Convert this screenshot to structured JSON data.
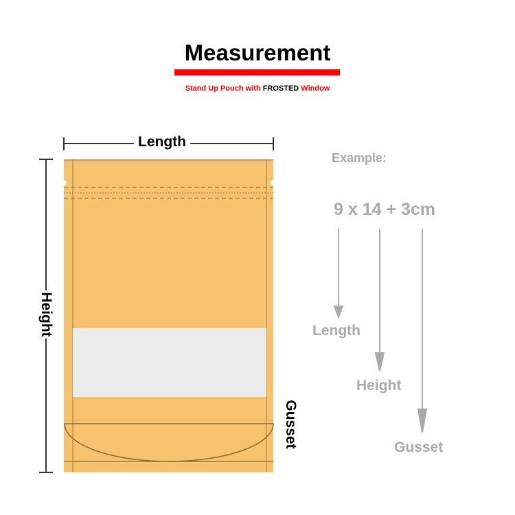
{
  "header": {
    "title": "Measurement",
    "subtitle_parts": [
      "Stand Up Pouch with ",
      "FROSTED",
      " Window"
    ]
  },
  "diagram": {
    "length_label": "Length",
    "height_label": "Height",
    "gusset_label": "Gusset"
  },
  "example": {
    "label": "Example:",
    "formula": "9 x 14 + 3cm",
    "arrow_labels": [
      "Length",
      "Height",
      "Gusset"
    ]
  },
  "colors": {
    "accent_red": "#ff0000",
    "pouch_kraft": "#f6c26d",
    "window_frosted": "#ebebeb",
    "example_grey": "#a9a9a9"
  }
}
